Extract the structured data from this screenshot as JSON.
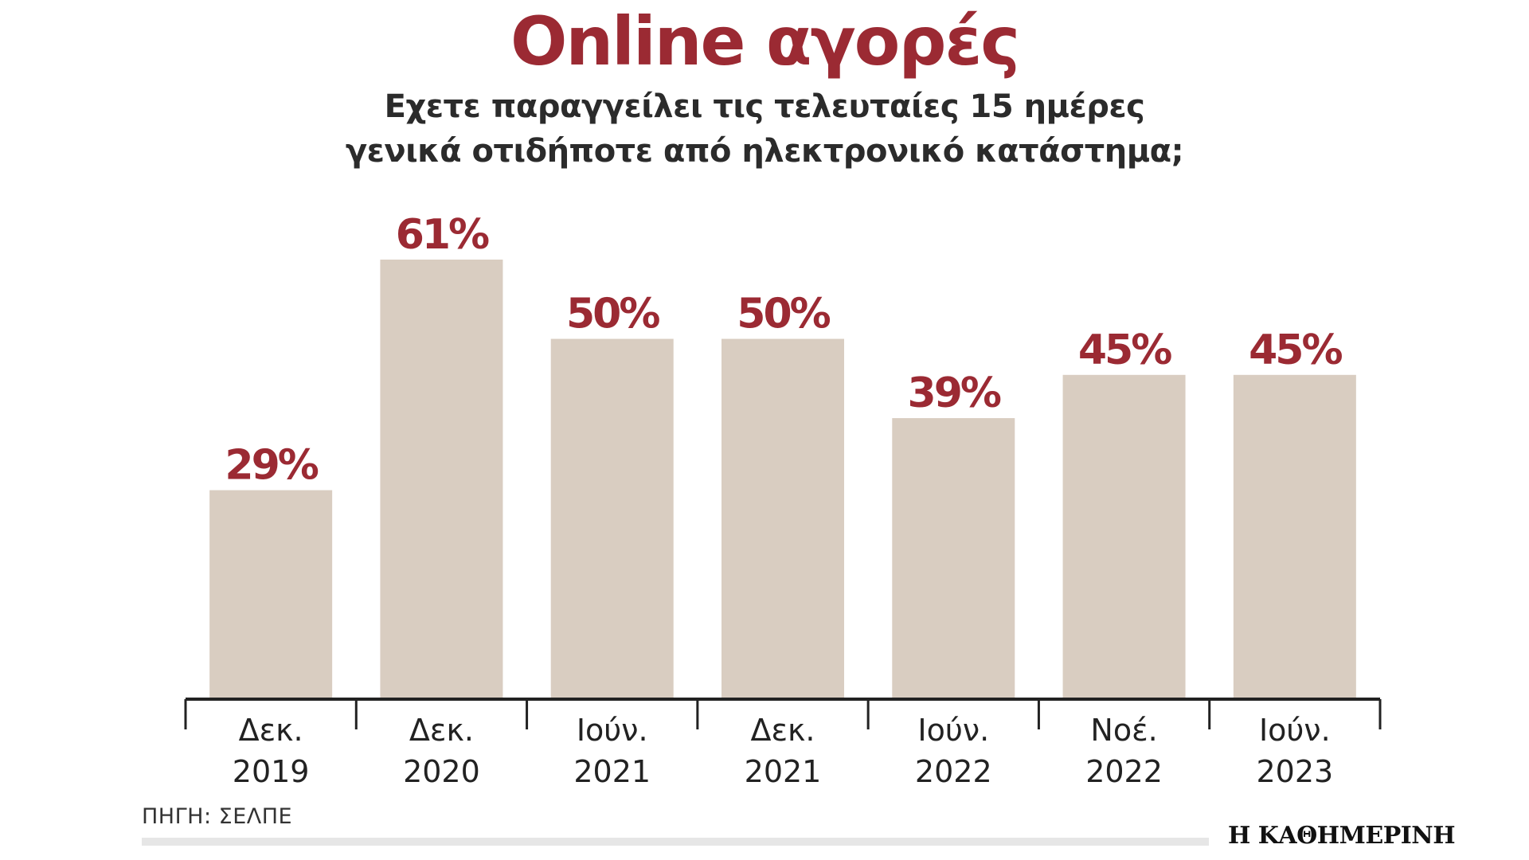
{
  "chart_data": {
    "type": "bar",
    "title": "Online αγορές",
    "subtitle_lines": [
      "Εχετε παραγγείλει τις τελευταίες 15 ημέρες",
      "γενικά οτιδήποτε από ηλεκτρονικό κατάστημα;"
    ],
    "categories": [
      [
        "Δεκ.",
        "2019"
      ],
      [
        "Δεκ.",
        "2020"
      ],
      [
        "Ιούν.",
        "2021"
      ],
      [
        "Δεκ.",
        "2021"
      ],
      [
        "Ιούν.",
        "2022"
      ],
      [
        "Νοέ.",
        "2022"
      ],
      [
        "Ιούν.",
        "2023"
      ]
    ],
    "values": [
      29,
      61,
      50,
      50,
      39,
      45,
      45
    ],
    "value_labels": [
      "29%",
      "61%",
      "50%",
      "50%",
      "39%",
      "45%",
      "45%"
    ],
    "xlabel": "",
    "ylabel": "",
    "ylim": [
      0,
      61
    ],
    "grid": false,
    "bar_color": "#d9cdc1",
    "label_color": "#9b2a33"
  },
  "footer": {
    "source": "ΠΗΓΗ: ΣΕΛΠΕ",
    "publisher": "Η ΚΑΘΗΜΕΡΙΝΗ"
  },
  "colors": {
    "title": "#9b2a33",
    "axis": "#222222"
  }
}
